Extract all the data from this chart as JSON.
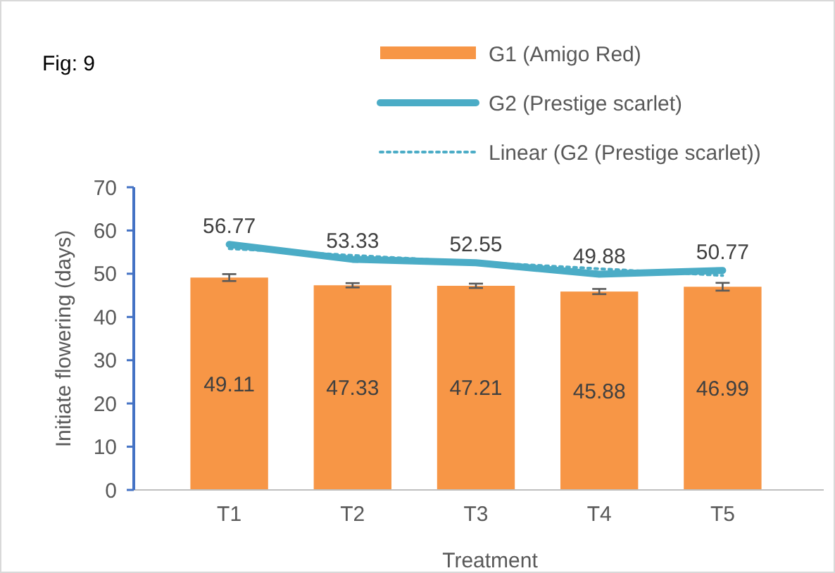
{
  "chart_data": {
    "type": "bar",
    "title": "Fig: 9",
    "xlabel": "Treatment",
    "ylabel": "Initiate flowering (days)",
    "categories": [
      "T1",
      "T2",
      "T3",
      "T4",
      "T5"
    ],
    "series": [
      {
        "name": "G1 (Amigo Red)",
        "color": "#f79646",
        "values": [
          49.11,
          47.33,
          47.21,
          45.88,
          46.99
        ],
        "errors": [
          0.8,
          0.5,
          0.5,
          0.6,
          0.9
        ],
        "value_labels": [
          "49.11",
          "47.33",
          "47.21",
          "45.88",
          "46.99"
        ]
      },
      {
        "name": "G2 (Prestige scarlet)",
        "type": "line",
        "color": "#4bacc6",
        "values": [
          56.77,
          53.33,
          52.55,
          49.88,
          50.77
        ],
        "value_labels": [
          "56.77",
          "53.33",
          "52.55",
          "49.88",
          "50.77"
        ]
      },
      {
        "name": "Linear (G2 (Prestige scarlet))",
        "type": "line",
        "line_style": "dotted",
        "color": "#4bacc6",
        "x": [
          "T1",
          "T5"
        ],
        "values": [
          55.8,
          49.6
        ]
      }
    ],
    "ylim": [
      0,
      70
    ],
    "yticks": [
      0,
      10,
      20,
      30,
      40,
      50,
      60,
      70
    ],
    "legend": "top right",
    "grid": false,
    "marker": "none"
  }
}
